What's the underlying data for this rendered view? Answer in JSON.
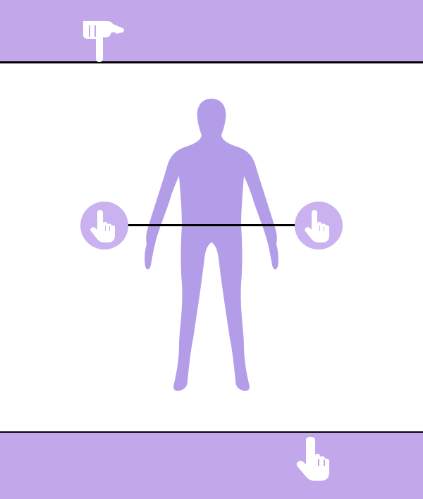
{
  "colors": {
    "band": "#c2a8ea",
    "figure": "#b49de8",
    "handle_circle": "#c9b2ef",
    "icon": "#ffffff",
    "line": "#000000"
  },
  "icons": {
    "top_handle": "pointing-hand-down-icon",
    "bottom_handle": "pointing-hand-up-icon",
    "left_handle": "pointing-hand-up-icon",
    "right_handle": "pointing-hand-up-icon"
  }
}
